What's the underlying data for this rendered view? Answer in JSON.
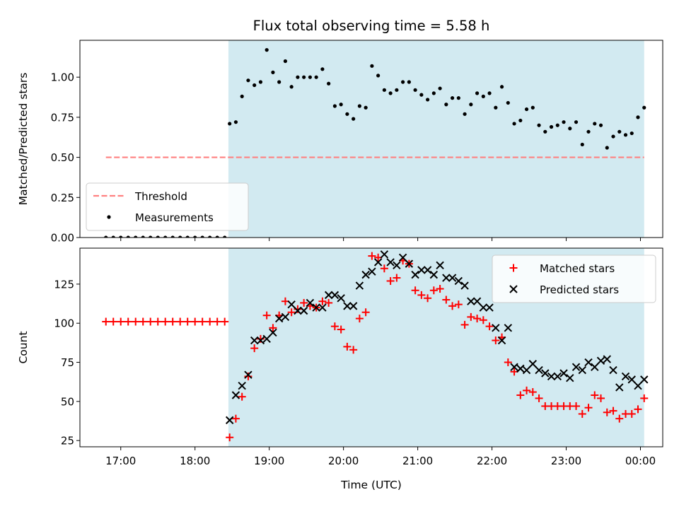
{
  "chart_data": [
    {
      "type": "scatter",
      "title": "Flux total observing time = 5.58 h",
      "xlabel": "",
      "ylabel": "Matched/Predicted stars",
      "ylim": [
        0,
        1.23
      ],
      "xlim": [
        "16:27",
        "00:18"
      ],
      "yticks": [
        "0.00",
        "0.25",
        "0.50",
        "0.75",
        "1.00"
      ],
      "shaded_span": [
        "18:27",
        "00:03"
      ],
      "shade_color": "#add8e6",
      "legend_position": "lower-left",
      "legend": [
        "Threshold",
        "Measurements"
      ],
      "threshold": {
        "name": "Threshold",
        "value": 0.5,
        "x_range": [
          "16:48",
          "00:03"
        ],
        "style": "dashed",
        "color": "#ff8080"
      },
      "series": [
        {
          "name": "Measurements",
          "color": "#000000",
          "x": [
            "16:48",
            "16:54",
            "17:00",
            "17:06",
            "17:12",
            "17:18",
            "17:24",
            "17:30",
            "17:36",
            "17:42",
            "17:48",
            "17:54",
            "18:00",
            "18:06",
            "18:12",
            "18:18",
            "18:24",
            "18:28",
            "18:33",
            "18:38",
            "18:43",
            "18:48",
            "18:53",
            "18:58",
            "19:03",
            "19:08",
            "19:13",
            "19:18",
            "19:23",
            "19:28",
            "19:33",
            "19:38",
            "19:43",
            "19:48",
            "19:53",
            "19:58",
            "20:03",
            "20:08",
            "20:13",
            "20:18",
            "20:23",
            "20:28",
            "20:33",
            "20:38",
            "20:43",
            "20:48",
            "20:53",
            "20:58",
            "21:03",
            "21:08",
            "21:13",
            "21:18",
            "21:23",
            "21:28",
            "21:33",
            "21:38",
            "21:43",
            "21:48",
            "21:53",
            "21:58",
            "22:03",
            "22:08",
            "22:13",
            "22:18",
            "22:23",
            "22:28",
            "22:33",
            "22:38",
            "22:43",
            "22:48",
            "22:53",
            "22:58",
            "23:03",
            "23:08",
            "23:13",
            "23:18",
            "23:23",
            "23:28",
            "23:33",
            "23:38",
            "23:43",
            "23:48",
            "23:53",
            "23:58",
            "00:03"
          ],
          "y": [
            0,
            0,
            0,
            0,
            0,
            0,
            0,
            0,
            0,
            0,
            0,
            0,
            0,
            0,
            0,
            0,
            0,
            0.71,
            0.72,
            0.88,
            0.98,
            0.95,
            0.97,
            1.17,
            1.03,
            0.97,
            1.1,
            0.94,
            1.0,
            1.0,
            1.0,
            1.0,
            1.05,
            0.96,
            0.82,
            0.83,
            0.77,
            0.74,
            0.82,
            0.81,
            1.07,
            1.01,
            0.92,
            0.9,
            0.92,
            0.97,
            0.97,
            0.92,
            0.89,
            0.86,
            0.9,
            0.93,
            0.83,
            0.87,
            0.87,
            0.77,
            0.83,
            0.9,
            0.88,
            0.9,
            0.81,
            0.94,
            0.84,
            0.71,
            0.73,
            0.8,
            0.81,
            0.7,
            0.66,
            0.69,
            0.7,
            0.72,
            0.68,
            0.72,
            0.58,
            0.66,
            0.71,
            0.7,
            0.56,
            0.63,
            0.66,
            0.64,
            0.65,
            0.75,
            0.81
          ]
        }
      ]
    },
    {
      "type": "scatter",
      "title": "",
      "xlabel": "Time (UTC)",
      "ylabel": "Count",
      "ylim": [
        21,
        148
      ],
      "xlim": [
        "16:27",
        "00:18"
      ],
      "yticks": [
        "25",
        "50",
        "75",
        "100",
        "125"
      ],
      "xticks": [
        "17:00",
        "18:00",
        "19:00",
        "20:00",
        "21:00",
        "22:00",
        "23:00",
        "00:00"
      ],
      "shaded_span": [
        "18:27",
        "00:03"
      ],
      "shade_color": "#add8e6",
      "legend_position": "top-right",
      "legend": [
        "Matched stars",
        "Predicted stars"
      ],
      "series": [
        {
          "name": "Matched stars",
          "marker": "plus",
          "color": "#ff0000",
          "x": [
            "16:48",
            "16:54",
            "17:00",
            "17:06",
            "17:12",
            "17:18",
            "17:24",
            "17:30",
            "17:36",
            "17:42",
            "17:48",
            "17:54",
            "18:00",
            "18:06",
            "18:12",
            "18:18",
            "18:24",
            "18:28",
            "18:33",
            "18:38",
            "18:43",
            "18:48",
            "18:53",
            "18:58",
            "19:03",
            "19:08",
            "19:13",
            "19:18",
            "19:23",
            "19:28",
            "19:33",
            "19:38",
            "19:43",
            "19:48",
            "19:53",
            "19:58",
            "20:03",
            "20:08",
            "20:13",
            "20:18",
            "20:23",
            "20:28",
            "20:33",
            "20:38",
            "20:43",
            "20:48",
            "20:53",
            "20:58",
            "21:03",
            "21:08",
            "21:13",
            "21:18",
            "21:23",
            "21:28",
            "21:33",
            "21:38",
            "21:43",
            "21:48",
            "21:53",
            "21:58",
            "22:03",
            "22:08",
            "22:13",
            "22:18",
            "22:23",
            "22:28",
            "22:33",
            "22:38",
            "22:43",
            "22:48",
            "22:53",
            "22:58",
            "23:03",
            "23:08",
            "23:13",
            "23:18",
            "23:23",
            "23:28",
            "23:33",
            "23:38",
            "23:43",
            "23:48",
            "23:53",
            "23:58",
            "00:03"
          ],
          "y": [
            101,
            101,
            101,
            101,
            101,
            101,
            101,
            101,
            101,
            101,
            101,
            101,
            101,
            101,
            101,
            101,
            101,
            27,
            39,
            53,
            66,
            84,
            90,
            105,
            97,
            105,
            114,
            107,
            109,
            113,
            111,
            110,
            114,
            113,
            98,
            96,
            85,
            83,
            103,
            107,
            143,
            142,
            135,
            127,
            129,
            140,
            138,
            121,
            118,
            116,
            121,
            122,
            115,
            111,
            112,
            99,
            104,
            103,
            102,
            98,
            89,
            91,
            75,
            69,
            54,
            57,
            56,
            52,
            47,
            47,
            47,
            47,
            47,
            47,
            42,
            46,
            54,
            52,
            43,
            44,
            39,
            42,
            42,
            45,
            52
          ]
        },
        {
          "name": "Predicted stars",
          "marker": "x",
          "color": "#000000",
          "x": [
            "18:28",
            "18:33",
            "18:38",
            "18:43",
            "18:48",
            "18:53",
            "18:58",
            "19:03",
            "19:08",
            "19:13",
            "19:18",
            "19:23",
            "19:28",
            "19:33",
            "19:38",
            "19:43",
            "19:48",
            "19:53",
            "19:58",
            "20:03",
            "20:08",
            "20:13",
            "20:18",
            "20:23",
            "20:28",
            "20:33",
            "20:38",
            "20:43",
            "20:48",
            "20:53",
            "20:58",
            "21:03",
            "21:08",
            "21:13",
            "21:18",
            "21:23",
            "21:28",
            "21:33",
            "21:38",
            "21:43",
            "21:48",
            "21:53",
            "21:58",
            "22:03",
            "22:08",
            "22:13",
            "22:18",
            "22:23",
            "22:28",
            "22:33",
            "22:38",
            "22:43",
            "22:48",
            "22:53",
            "22:58",
            "23:03",
            "23:08",
            "23:13",
            "23:18",
            "23:23",
            "23:28",
            "23:33",
            "23:38",
            "23:43",
            "23:48",
            "23:53",
            "23:58",
            "00:03"
          ],
          "y": [
            38,
            54,
            60,
            67,
            89,
            89,
            90,
            94,
            103,
            104,
            112,
            108,
            108,
            113,
            110,
            110,
            118,
            118,
            116,
            111,
            111,
            124,
            131,
            133,
            139,
            144,
            139,
            137,
            142,
            138,
            131,
            134,
            134,
            131,
            137,
            129,
            129,
            127,
            124,
            114,
            114,
            110,
            110,
            97,
            89,
            97,
            72,
            71,
            70,
            74,
            70,
            68,
            66,
            66,
            68,
            65,
            72,
            70,
            75,
            72,
            76,
            77,
            70,
            59,
            66,
            64,
            60,
            64
          ]
        }
      ]
    }
  ]
}
